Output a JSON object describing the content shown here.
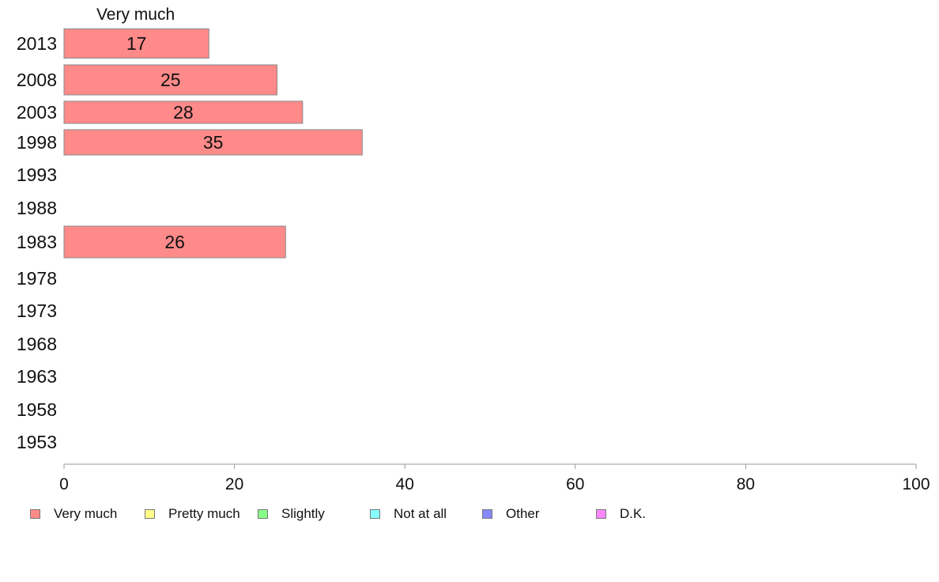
{
  "chart_data": {
    "type": "bar",
    "orientation": "horizontal",
    "stacked": true,
    "column_title": "Very much",
    "categories": [
      "2013",
      "2008",
      "2003",
      "1998",
      "1993",
      "1988",
      "1983",
      "1978",
      "1973",
      "1968",
      "1963",
      "1958",
      "1953"
    ],
    "series": [
      {
        "name": "Very much",
        "color": "#ff8a8a",
        "values": [
          17,
          25,
          28,
          35,
          null,
          null,
          26,
          null,
          null,
          null,
          null,
          null,
          null
        ]
      },
      {
        "name": "Pretty much",
        "color": "#ffff88",
        "values": [
          null,
          null,
          null,
          null,
          null,
          null,
          null,
          null,
          null,
          null,
          null,
          null,
          null
        ]
      },
      {
        "name": "Slightly",
        "color": "#88ff88",
        "values": [
          null,
          null,
          null,
          null,
          null,
          null,
          null,
          null,
          null,
          null,
          null,
          null,
          null
        ]
      },
      {
        "name": "Not at all",
        "color": "#88ffff",
        "values": [
          null,
          null,
          null,
          null,
          null,
          null,
          null,
          null,
          null,
          null,
          null,
          null,
          null
        ]
      },
      {
        "name": "Other",
        "color": "#8888ff",
        "values": [
          null,
          null,
          null,
          null,
          null,
          null,
          null,
          null,
          null,
          null,
          null,
          null,
          null
        ]
      },
      {
        "name": "D.K.",
        "color": "#ff88ff",
        "values": [
          null,
          null,
          null,
          null,
          null,
          null,
          null,
          null,
          null,
          null,
          null,
          null,
          null
        ]
      }
    ],
    "data_labels": [
      "17",
      "25",
      "28",
      "35",
      "",
      "",
      "26",
      "",
      "",
      "",
      "",
      "",
      ""
    ],
    "xlim": [
      0,
      100
    ],
    "x_ticks": [
      0,
      20,
      40,
      60,
      80,
      100
    ],
    "x_tick_labels": [
      "0",
      "20",
      "40",
      "60",
      "80",
      "100"
    ],
    "grid": false,
    "legend_position": "bottom"
  }
}
